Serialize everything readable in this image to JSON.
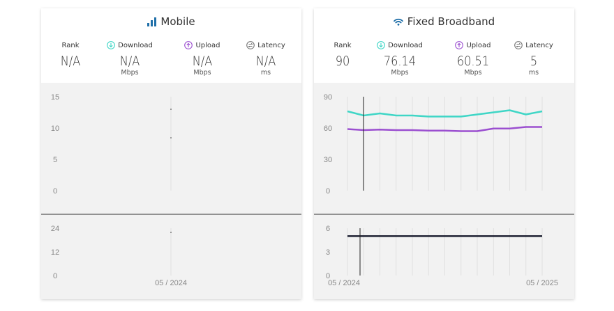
{
  "panels": [
    {
      "id": "mobile",
      "title": "Mobile",
      "title_icon": "bar-signal-icon",
      "metrics": [
        {
          "label": "Rank",
          "value": "N/A",
          "unit": "",
          "icon": ""
        },
        {
          "label": "Download",
          "value": "N/A",
          "unit": "Mbps",
          "icon": "download-icon"
        },
        {
          "label": "Upload",
          "value": "N/A",
          "unit": "Mbps",
          "icon": "upload-icon"
        },
        {
          "label": "Latency",
          "value": "N/A",
          "unit": "ms",
          "icon": "latency-icon"
        }
      ]
    },
    {
      "id": "fixed",
      "title": "Fixed Broadband",
      "title_icon": "wifi-icon",
      "metrics": [
        {
          "label": "Rank",
          "value": "90",
          "unit": "",
          "icon": ""
        },
        {
          "label": "Download",
          "value": "76.14",
          "unit": "Mbps",
          "icon": "download-icon"
        },
        {
          "label": "Upload",
          "value": "60.51",
          "unit": "Mbps",
          "icon": "upload-icon"
        },
        {
          "label": "Latency",
          "value": "5",
          "unit": "ms",
          "icon": "latency-icon"
        }
      ]
    }
  ],
  "colors": {
    "download": "#3fd6c6",
    "upload": "#9b4fd0",
    "latency": "#1f2233",
    "title_icon": "#1f6fa8",
    "grid": "#e0e0e0",
    "axis_text": "#888888"
  },
  "chart_data": [
    {
      "panel": "mobile",
      "type": "line",
      "title": "",
      "x_tick_labels": [
        "05 / 2024"
      ],
      "top": {
        "yticks": [
          "0",
          "5",
          "10",
          "15"
        ],
        "ylim": [
          0,
          15
        ],
        "series": [
          {
            "values": [
              null
            ]
          }
        ]
      },
      "bottom": {
        "yticks": [
          "0",
          "12",
          "24"
        ],
        "ylim": [
          0,
          24
        ],
        "series": [
          {
            "values": [
              null
            ]
          }
        ]
      }
    },
    {
      "panel": "fixed",
      "type": "line",
      "title": "",
      "x_tick_labels": [
        "05 / 2024",
        "05 / 2025"
      ],
      "x_count": 13,
      "top": {
        "yticks": [
          "0",
          "30",
          "60",
          "90"
        ],
        "ylim": [
          0,
          90
        ],
        "series": [
          {
            "color_key": "download",
            "values": [
              76,
              72,
              74,
              72,
              72,
              71,
              71,
              71,
              73,
              75,
              77,
              73,
              76
            ]
          },
          {
            "color_key": "upload",
            "values": [
              59,
              58,
              58.5,
              58,
              58,
              57.5,
              57.5,
              57,
              57,
              59.5,
              59.5,
              61,
              61
            ]
          }
        ]
      },
      "bottom": {
        "yticks": [
          "0",
          "3",
          "6"
        ],
        "ylim": [
          0,
          6
        ],
        "series": [
          {
            "color_key": "latency",
            "values": [
              5,
              5,
              5,
              5,
              5,
              5,
              5,
              5,
              5,
              5,
              5,
              5,
              5
            ]
          }
        ]
      }
    }
  ]
}
